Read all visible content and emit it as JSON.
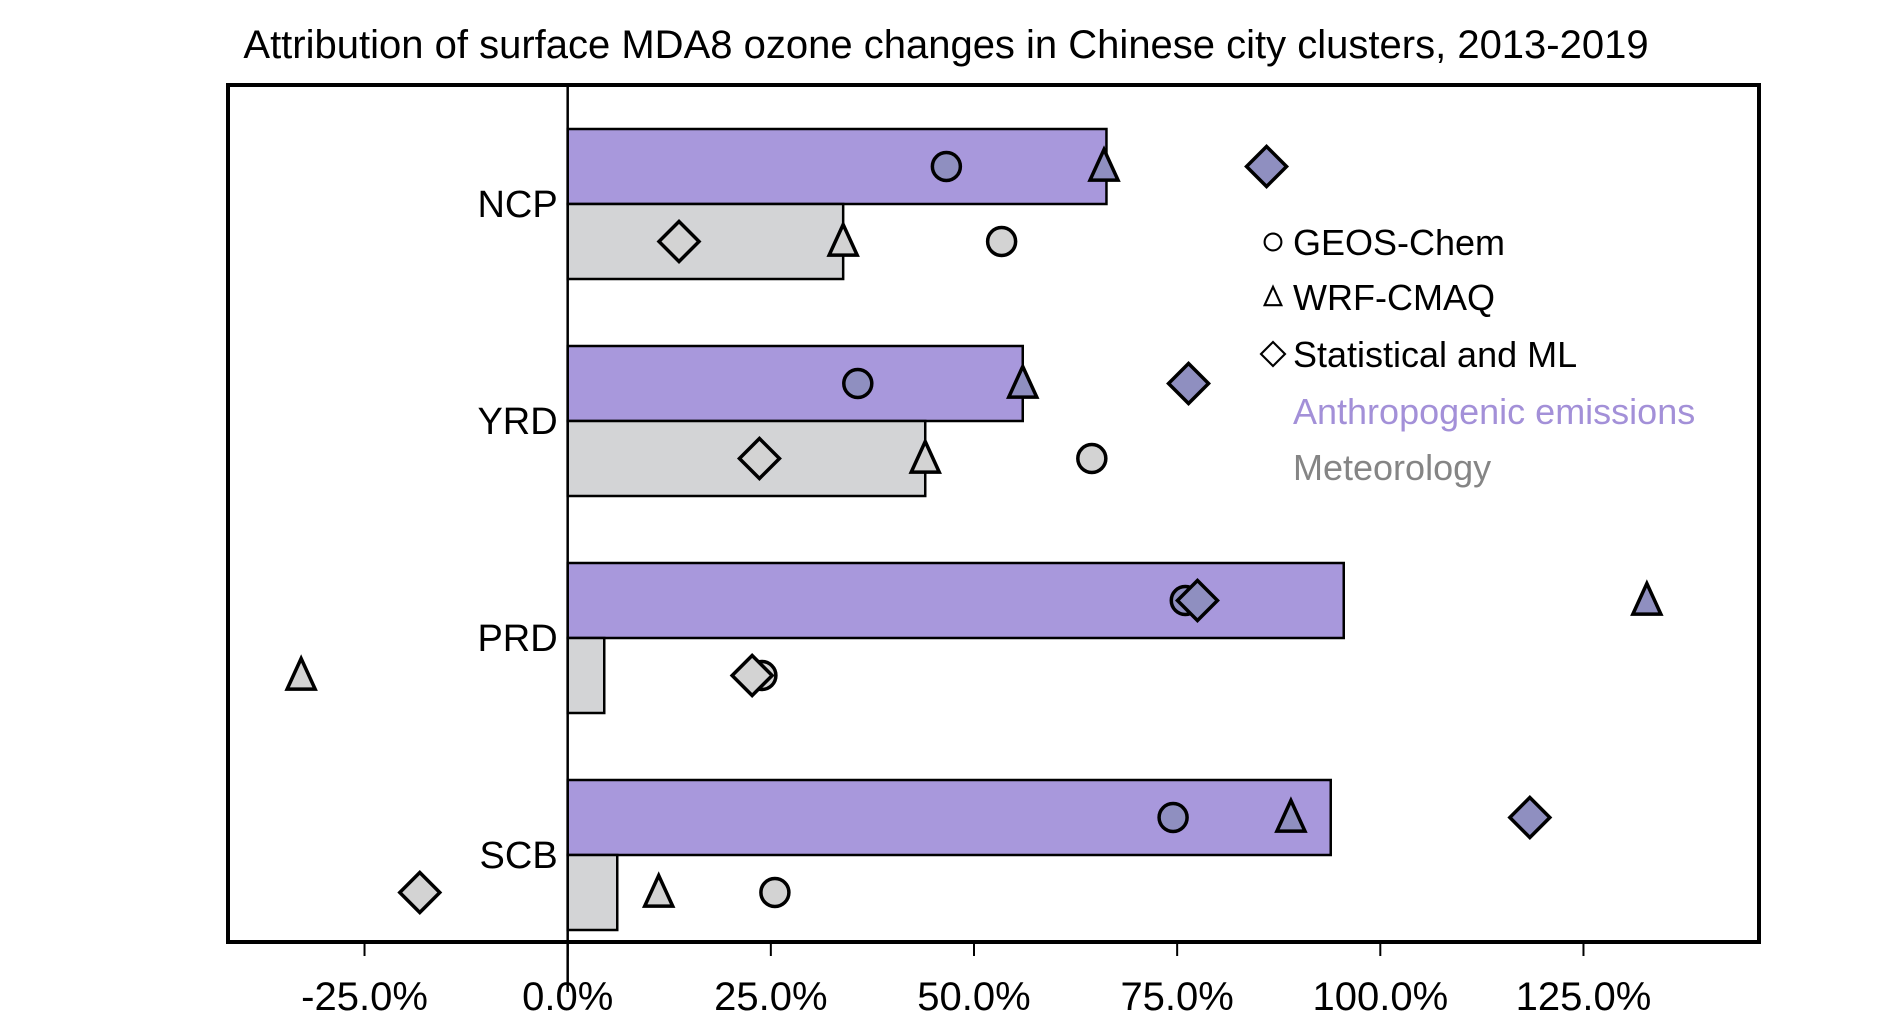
{
  "chart_data": {
    "type": "bar",
    "orientation": "horizontal",
    "title": "Attribution of surface MDA8 ozone changes in Chinese city clusters, 2013-2019",
    "xlabel": "",
    "ylabel": "",
    "xlim": [
      -41.8,
      146.6
    ],
    "xticks": [
      -25,
      0,
      25,
      50,
      75,
      100,
      125
    ],
    "xtick_labels": [
      "-25.0%",
      "0.0%",
      "25.0%",
      "50.0%",
      "75.0%",
      "100.0%",
      "125.0%"
    ],
    "categories": [
      "NCP",
      "YRD",
      "PRD",
      "SCB"
    ],
    "series": [
      {
        "name": "Anthropogenic emissions",
        "color": "#a898dc",
        "marker_color": "#8f8fc0",
        "values": [
          66.3,
          56.0,
          95.5,
          93.9
        ],
        "points": {
          "GEOS-Chem": [
            46.6,
            35.7,
            76.0,
            74.5
          ],
          "WRF-CMAQ": [
            66.0,
            56.0,
            132.8,
            89.0
          ],
          "Statistical and ML": [
            86.0,
            76.4,
            77.5,
            118.4
          ]
        }
      },
      {
        "name": "Meteorology",
        "color": "#d3d4d6",
        "marker_color": "#d3d3d3",
        "values": [
          33.9,
          44.0,
          4.5,
          6.1
        ],
        "points": {
          "GEOS-Chem": [
            53.4,
            64.5,
            23.9,
            25.5
          ],
          "WRF-CMAQ": [
            33.9,
            44.0,
            -32.8,
            11.2
          ],
          "Statistical and ML": [
            13.7,
            23.6,
            22.7,
            -18.2
          ]
        }
      }
    ],
    "legend": {
      "placement": "right",
      "markers": [
        {
          "label": "GEOS-Chem",
          "shape": "circle"
        },
        {
          "label": "WRF-CMAQ",
          "shape": "triangle"
        },
        {
          "label": "Statistical and ML",
          "shape": "diamond"
        }
      ],
      "series_labels": [
        {
          "label": "Anthropogenic emissions",
          "color": "#a390d8"
        },
        {
          "label": "Meteorology",
          "color": "#858585"
        }
      ]
    },
    "grid": false
  }
}
